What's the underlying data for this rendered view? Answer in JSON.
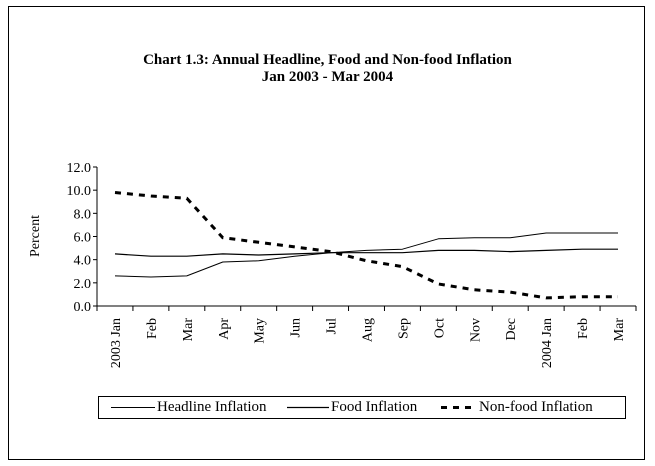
{
  "chart_data": {
    "type": "line",
    "title": "Chart 1.3: Annual Headline, Food and Non-food Inflation",
    "subtitle": "Jan 2003 - Mar 2004",
    "xlabel": "",
    "ylabel": "Percent",
    "ylim": [
      0,
      12
    ],
    "yticks": [
      "0.0",
      "2.0",
      "4.0",
      "6.0",
      "8.0",
      "10.0",
      "12.0"
    ],
    "categories": [
      "2003 Jan",
      "Feb",
      "Mar",
      "Apr",
      "May",
      "Jun",
      "Jul",
      "Aug",
      "Sep",
      "Oct",
      "Nov",
      "Dec",
      "2004 Jan",
      "Feb",
      "Mar"
    ],
    "series": [
      {
        "name": "Headline Inflation",
        "style": "solid-thin",
        "color": "#000000",
        "values": [
          2.6,
          2.5,
          2.6,
          3.8,
          3.9,
          4.3,
          4.6,
          4.8,
          4.9,
          5.8,
          5.9,
          5.9,
          6.3,
          6.3,
          6.3
        ]
      },
      {
        "name": "Food Inflation",
        "style": "solid",
        "color": "#000000",
        "values": [
          4.5,
          4.3,
          4.3,
          4.5,
          4.4,
          4.5,
          4.6,
          4.6,
          4.6,
          4.8,
          4.8,
          4.7,
          4.8,
          4.9,
          4.9
        ]
      },
      {
        "name": "Non-food Inflation",
        "style": "dashed",
        "color": "#000000",
        "values": [
          9.8,
          9.5,
          9.3,
          5.9,
          5.5,
          5.1,
          4.7,
          3.9,
          3.4,
          1.9,
          1.4,
          1.2,
          0.7,
          0.8,
          0.8
        ]
      }
    ],
    "legend_position": "bottom",
    "grid": false
  }
}
